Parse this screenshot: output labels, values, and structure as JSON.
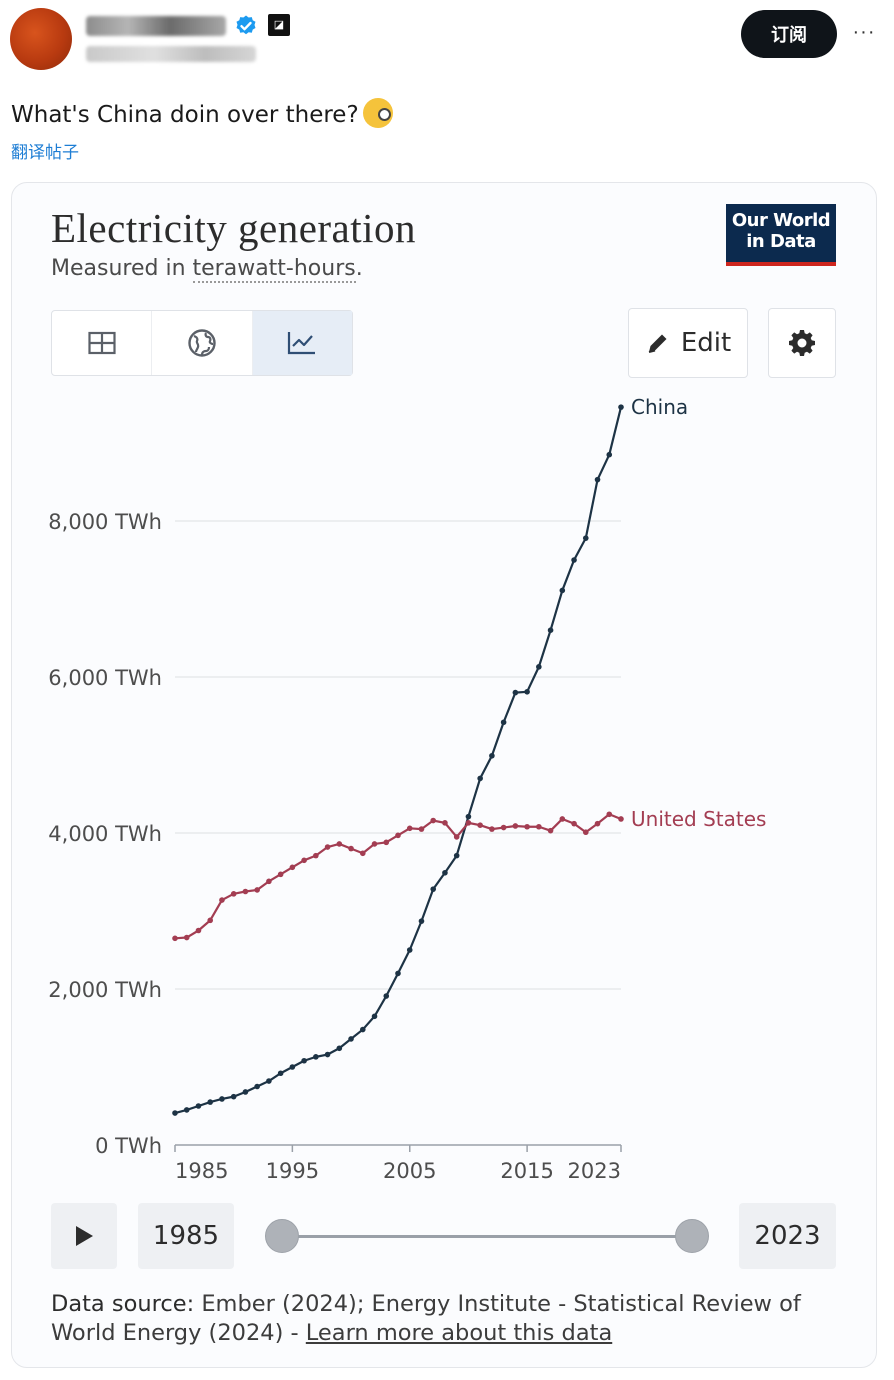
{
  "tweet": {
    "subscribe_label": "订阅",
    "more_label": "···",
    "text": "What's China doin over there?",
    "translate_label": "翻译帖子",
    "emoji_icon": "face-with-monocle-icon"
  },
  "card": {
    "title": "Electricity generation",
    "subtitle_prefix": "Measured in ",
    "subtitle_unit": "terawatt-hours",
    "subtitle_suffix": ".",
    "logo_line1": "Our World",
    "logo_line2": "in Data",
    "tabs": [
      {
        "icon": "table-icon",
        "active": false
      },
      {
        "icon": "globe-icon",
        "active": false
      },
      {
        "icon": "line-chart-icon",
        "active": true
      }
    ],
    "edit_label": "Edit",
    "timeline": {
      "start_year": "1985",
      "end_year": "2023"
    },
    "data_source_label": "Data source:",
    "data_source_text": " Ember (2024); Energy Institute - Statistical Review of World Energy (2024) - ",
    "learn_more_label": "Learn more about this data"
  },
  "colors": {
    "china": "#1d3345",
    "us": "#a33d52",
    "accent": "#2f4e74"
  },
  "chart_data": {
    "type": "line",
    "title": "Electricity generation",
    "subtitle": "Measured in terawatt-hours.",
    "ylabel": "",
    "xlabel": "",
    "ylim": [
      0,
      10000
    ],
    "y_ticks": [
      0,
      2000,
      4000,
      6000,
      8000
    ],
    "y_tick_labels": [
      "0 TWh",
      "2,000 TWh",
      "4,000 TWh",
      "6,000 TWh",
      "8,000 TWh"
    ],
    "x_ticks": [
      1985,
      1995,
      2005,
      2015,
      2023
    ],
    "x_tick_labels": [
      "1985",
      "1995",
      "2005",
      "2015",
      "2023"
    ],
    "x": [
      1985,
      1986,
      1987,
      1988,
      1989,
      1990,
      1991,
      1992,
      1993,
      1994,
      1995,
      1996,
      1997,
      1998,
      1999,
      2000,
      2001,
      2002,
      2003,
      2004,
      2005,
      2006,
      2007,
      2008,
      2009,
      2010,
      2011,
      2012,
      2013,
      2014,
      2015,
      2016,
      2017,
      2018,
      2019,
      2020,
      2021,
      2022,
      2023
    ],
    "series": [
      {
        "name": "China",
        "values": [
          410,
          450,
          500,
          550,
          590,
          620,
          680,
          750,
          820,
          920,
          1000,
          1080,
          1130,
          1160,
          1240,
          1360,
          1480,
          1650,
          1910,
          2200,
          2500,
          2870,
          3280,
          3490,
          3710,
          4210,
          4700,
          4990,
          5420,
          5800,
          5810,
          6130,
          6600,
          7110,
          7500,
          7780,
          8530,
          8850,
          9460
        ]
      },
      {
        "name": "United States",
        "values": [
          2650,
          2660,
          2750,
          2880,
          3140,
          3220,
          3250,
          3270,
          3380,
          3470,
          3560,
          3650,
          3710,
          3820,
          3860,
          3800,
          3740,
          3860,
          3880,
          3970,
          4060,
          4050,
          4160,
          4130,
          3950,
          4130,
          4100,
          4050,
          4070,
          4090,
          4080,
          4080,
          4030,
          4180,
          4120,
          4010,
          4120,
          4240,
          4180
        ]
      }
    ],
    "grid": true,
    "legend": "end-of-line labels"
  }
}
